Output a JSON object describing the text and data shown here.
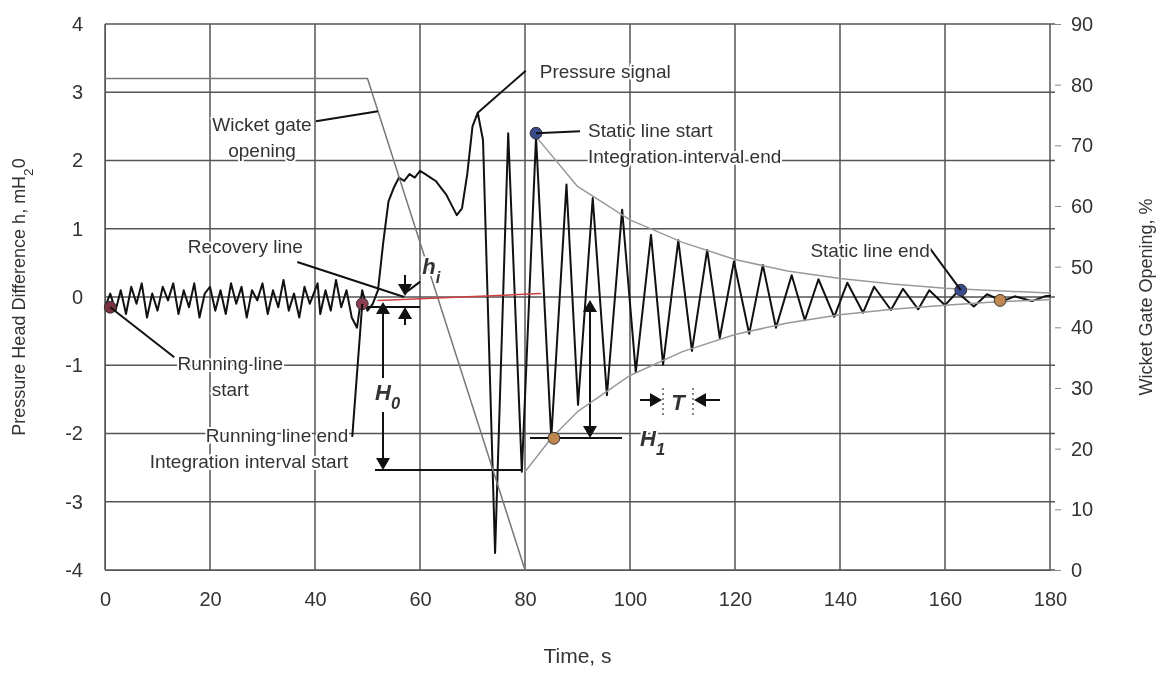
{
  "chart_data": {
    "type": "line",
    "xlabel": "Time, s",
    "ylabel": "Pressure Head Difference h, mH$_{2}$0",
    "y2label": "Wicket Gate Opening, %",
    "xlim": [
      0,
      180
    ],
    "xticks": [
      0,
      20,
      40,
      60,
      80,
      100,
      120,
      140,
      160,
      180
    ],
    "ylim": [
      -4,
      4
    ],
    "yticks": [
      -4,
      -3,
      -2,
      -1,
      0,
      1,
      2,
      3,
      4
    ],
    "y2lim": [
      0,
      90
    ],
    "y2ticks": [
      0,
      10,
      20,
      30,
      40,
      50,
      60,
      70,
      80,
      90
    ],
    "grid": true,
    "series": [
      {
        "type": "line",
        "color": "#111111",
        "x": [
          0,
          1,
          2,
          3,
          4,
          5,
          6,
          7,
          8,
          9,
          10,
          11,
          12,
          13,
          14,
          15,
          16,
          17,
          18,
          19,
          20,
          21,
          22,
          23,
          24,
          25,
          26,
          27,
          28,
          29,
          30,
          31,
          32,
          33,
          34,
          35,
          36,
          37,
          38,
          39,
          40.5,
          41,
          42,
          43,
          44,
          45,
          46,
          47,
          48,
          49,
          50,
          51,
          52,
          53,
          54,
          55,
          56,
          57,
          58,
          59,
          60,
          61,
          62,
          63,
          64,
          65,
          66,
          67,
          68,
          69,
          70,
          71,
          72,
          74.3,
          76.8,
          79.4,
          82.1,
          85,
          87.9,
          90.1,
          92.9,
          95.6,
          98.5,
          101.1,
          104,
          106.3,
          109.2,
          111.8,
          114.7,
          117.1,
          119.8,
          122.7,
          125.3,
          127.8,
          130.8,
          133.3,
          135.9,
          138.9,
          141.4,
          144.4,
          146.5,
          149.7,
          152,
          154.9,
          157,
          160,
          162.3,
          165.5,
          168,
          171,
          173.3,
          176.6,
          179,
          180
        ],
        "values": [
          -0.15,
          0.05,
          -0.2,
          0.1,
          -0.25,
          0.15,
          -0.1,
          0.2,
          -0.3,
          0.05,
          -0.2,
          0.15,
          -0.05,
          0.2,
          -0.25,
          0.1,
          -0.15,
          0.2,
          -0.3,
          0.05,
          0.15,
          -0.2,
          0.1,
          -0.25,
          0.2,
          -0.1,
          0.15,
          -0.3,
          0.1,
          -0.05,
          0.2,
          -0.25,
          0.1,
          -0.15,
          0.25,
          -0.2,
          0.05,
          -0.3,
          0.15,
          -0.1,
          0.2,
          -0.25,
          0.1,
          -0.2,
          0.25,
          -0.15,
          0.1,
          -0.3,
          -0.45,
          0.1,
          -0.2,
          -0.1,
          0.1,
          0.8,
          1.4,
          1.6,
          1.75,
          1.7,
          1.8,
          1.75,
          1.85,
          1.8,
          1.75,
          1.7,
          1.6,
          1.5,
          1.35,
          1.2,
          1.3,
          1.8,
          2.5,
          2.7,
          2.3,
          -3.75,
          2.4,
          -2.56,
          2.35,
          -2.07,
          1.65,
          -1.58,
          1.45,
          -1.44,
          1.28,
          -1.1,
          0.91,
          -0.99,
          0.83,
          -0.79,
          0.69,
          -0.6,
          0.52,
          -0.54,
          0.47,
          -0.45,
          0.32,
          -0.34,
          0.26,
          -0.29,
          0.21,
          -0.23,
          0.15,
          -0.19,
          0.12,
          -0.18,
          0.1,
          -0.12,
          0.07,
          -0.14,
          0.04,
          -0.06,
          0.01,
          -0.06,
          0.01,
          0.02
        ]
      },
      {
        "type": "line",
        "axis": "y2",
        "color": "#777777",
        "x": [
          0,
          50,
          80
        ],
        "values": [
          81,
          81,
          0
        ]
      },
      {
        "type": "line",
        "color": "#999999",
        "x": [
          82.1,
          90,
          100,
          110,
          120,
          130,
          140,
          150,
          160,
          170,
          180
        ],
        "values": [
          2.35,
          1.62,
          1.13,
          0.8,
          0.55,
          0.38,
          0.27,
          0.19,
          0.13,
          0.09,
          0.06
        ]
      },
      {
        "type": "line",
        "color": "#999999",
        "x": [
          80,
          85,
          90,
          100,
          110,
          120,
          130,
          140,
          150,
          160,
          170,
          180
        ],
        "values": [
          -2.56,
          -2.07,
          -1.68,
          -1.15,
          -0.8,
          -0.55,
          -0.38,
          -0.26,
          -0.18,
          -0.12,
          -0.07,
          -0.04
        ]
      },
      {
        "type": "line",
        "color": "#d04040",
        "x": [
          52,
          83
        ],
        "values": [
          -0.05,
          0.05
        ]
      },
      {
        "type": "scatter",
        "marker": "circle",
        "x": [
          1,
          49,
          82.1,
          163,
          85.5,
          170.5
        ],
        "values": [
          -0.15,
          -0.1,
          2.4,
          0.1,
          -2.07,
          -0.05
        ],
        "colors": [
          "#7a3040",
          "#8a4050",
          "#3a4a8a",
          "#3a4a8a",
          "#c08850",
          "#c08850"
        ]
      }
    ],
    "annotations": [
      {
        "text": "Pressure signal",
        "x": 71,
        "y": 2.7
      },
      {
        "text": "Wicket gate\nopening",
        "x": 52,
        "y": 2.72
      },
      {
        "text": "Recovery line",
        "x": 57,
        "y": 0
      },
      {
        "text": "h$_{i}$",
        "x": 57,
        "y": 0.05
      },
      {
        "text": "Running line\nstart",
        "x": 1,
        "y": -0.15
      },
      "H$_{0}$",
      {
        "text": "Running line end\nIntegration interval start",
        "x": 49,
        "y": -0.1
      },
      {
        "text": "Static line start\nIntegration interval end",
        "x": 82.1,
        "y": 2.4
      },
      {
        "text": "Static line end",
        "x": 163,
        "y": 0.1
      },
      "T",
      "H$_{1}$"
    ]
  }
}
